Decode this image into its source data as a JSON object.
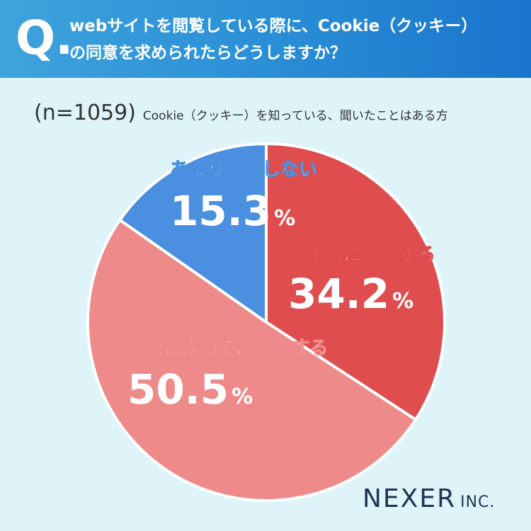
{
  "header": {
    "q_mark": "Q.",
    "question_line1": "webサイトを閲覧している際に、Cookie（クッキー）",
    "question_line2": "の同意を求められたらどうしますか？"
  },
  "sample": {
    "n": "(n=1059)",
    "description": "Cookie（クッキー）を知っている、聞いたことはある方"
  },
  "chart_data": {
    "type": "pie",
    "slices": [
      {
        "label": "基本的に同意する",
        "value": 34.2,
        "color": "#df4d4f"
      },
      {
        "label": "場合によっては同意する",
        "value": 50.5,
        "color": "#ef8a8a"
      },
      {
        "label": "あまり同意しない",
        "value": 15.3,
        "color": "#4a8fe0"
      }
    ],
    "unit": "%",
    "start": "12 o'clock",
    "direction": "clockwise"
  },
  "logo": {
    "name": "NEXER",
    "suffix": "INC."
  }
}
